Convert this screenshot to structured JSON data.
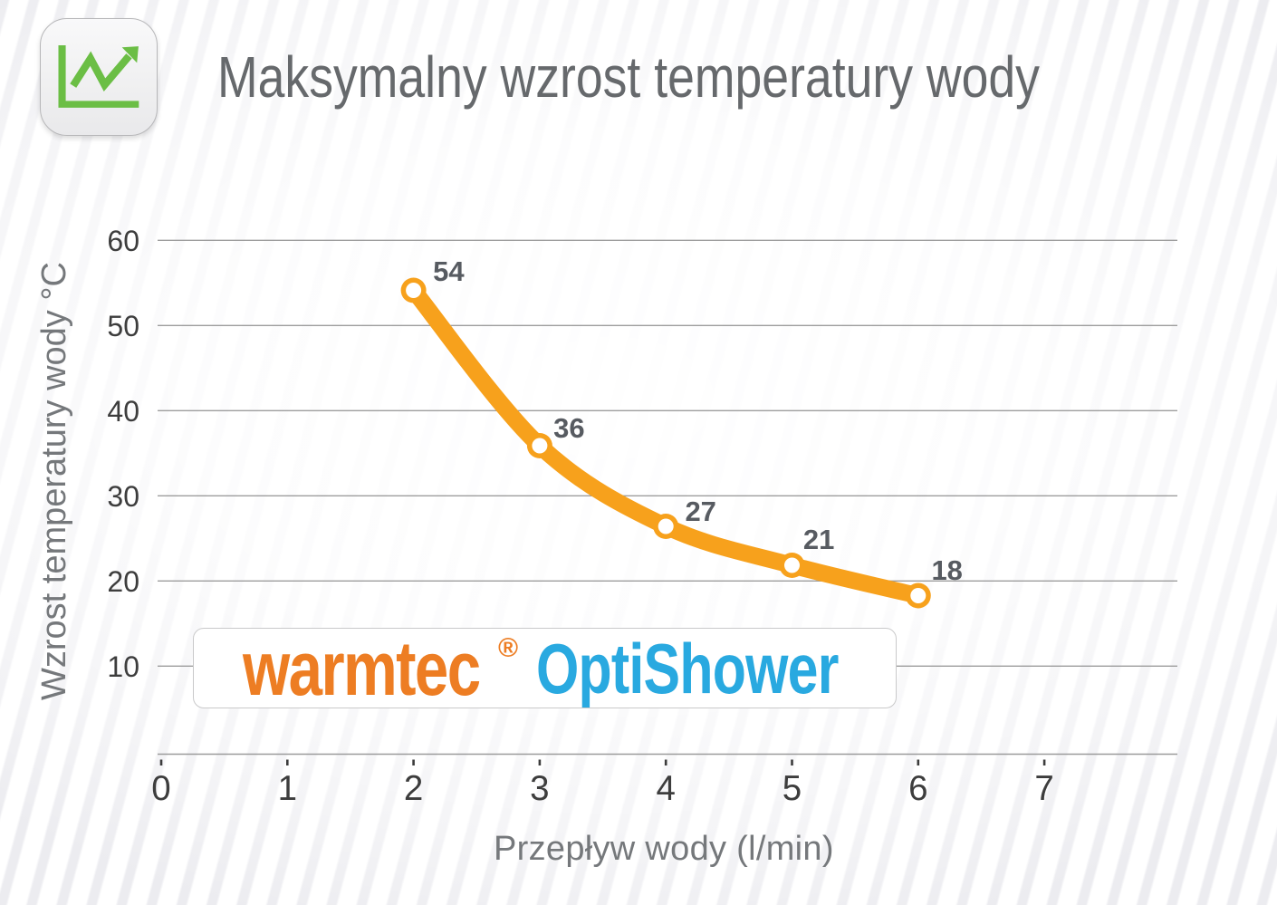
{
  "title": "Maksymalny wzrost temperatury wody",
  "icon": {
    "name": "line-chart-icon",
    "green": "#6bbe45"
  },
  "chart_data": {
    "type": "line",
    "x": [
      2,
      3,
      4,
      5,
      6
    ],
    "series": [
      {
        "name": "Maksymalny wzrost temperatury wody",
        "values": [
          54,
          36,
          27,
          21,
          18
        ]
      }
    ],
    "point_labels": [
      "54",
      "36",
      "27",
      "21",
      "18"
    ],
    "title": "Maksymalny wzrost temperatury wody",
    "xlabel": "Przepływ wody (l/min)",
    "ylabel": "Wzrost temperatury wody °C",
    "x_ticks": [
      "0",
      "1",
      "2",
      "3",
      "4",
      "5",
      "6",
      "7"
    ],
    "y_ticks": [
      "10",
      "20",
      "30",
      "40",
      "50",
      "60"
    ],
    "xlim": [
      0,
      8
    ],
    "ylim": [
      0,
      60
    ],
    "grid": true,
    "legend": false,
    "line_color": "#f7a11c",
    "marker": "circle-white-fill",
    "label_color": "#575b61",
    "grid_color": "#9d9d9d"
  },
  "logo": {
    "brand": "warmtec",
    "registered": "®",
    "product": "OptiShower",
    "brand_color": "#ed7d23",
    "product_color": "#29a9e0"
  }
}
